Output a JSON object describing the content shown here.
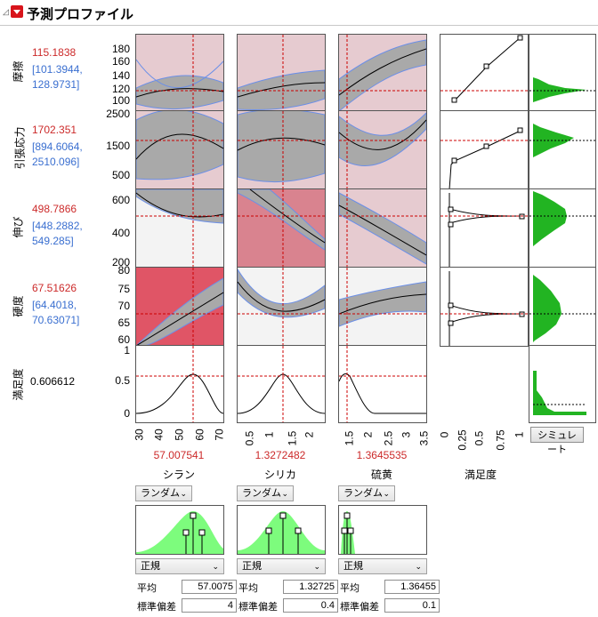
{
  "title": "予測プロファイル",
  "responses": [
    {
      "name": "摩擦",
      "value": "115.1838",
      "ci_low": "[101.3944,",
      "ci_high": "128.9731]",
      "ticks": [
        "180",
        "160",
        "140",
        "120",
        "100"
      ]
    },
    {
      "name": "引張応力",
      "value": "1702.351",
      "ci_low": "[894.6064,",
      "ci_high": "2510.096]",
      "ticks": [
        "2500",
        "1500",
        "500"
      ]
    },
    {
      "name": "伸び",
      "value": "498.7866",
      "ci_low": "[448.2882,",
      "ci_high": "549.285]",
      "ticks": [
        "600",
        "400",
        "200"
      ]
    },
    {
      "name": "硬度",
      "value": "67.51626",
      "ci_low": "[64.4018,",
      "ci_high": "70.63071]",
      "ticks": [
        "80",
        "75",
        "70",
        "65",
        "60"
      ]
    }
  ],
  "desirability": {
    "name": "満足度",
    "value": "0.606612",
    "ticks": [
      "1",
      "0.5",
      "0.25",
      "0"
    ]
  },
  "factors": [
    {
      "name": "シラン",
      "value": "57.007541",
      "ticks": [
        "30",
        "40",
        "50",
        "60",
        "70"
      ],
      "method": "ランダム",
      "dist": "正規",
      "mean_label": "平均",
      "mean": "57.0075",
      "sd_label": "標準偏差",
      "sd": "4"
    },
    {
      "name": "シリカ",
      "value": "1.3272482",
      "ticks": [
        "0.5",
        "1",
        "1.5",
        "2"
      ],
      "method": "ランダム",
      "dist": "正規",
      "mean_label": "平均",
      "mean": "1.32725",
      "sd_label": "標準偏差",
      "sd": "0.4"
    },
    {
      "name": "硫黄",
      "value": "1.3645535",
      "ticks": [
        "1.5",
        "2",
        "2.5",
        "3",
        "3.5"
      ],
      "method": "ランダム",
      "dist": "正規",
      "mean_label": "平均",
      "mean": "1.36455",
      "sd_label": "標準偏差",
      "sd": "0.1"
    }
  ],
  "desirability_axis": {
    "name": "満足度",
    "ticks": [
      "0",
      "0.25",
      "0.5",
      "0.75",
      "1"
    ]
  },
  "simulate_button": "シミュレート",
  "colors": {
    "current_line": "#cc0000",
    "band": "#a9a9a9",
    "band_edge": "#6b8fe8",
    "hist": "#22b422",
    "dist_fill": "#7dfc7d"
  }
}
